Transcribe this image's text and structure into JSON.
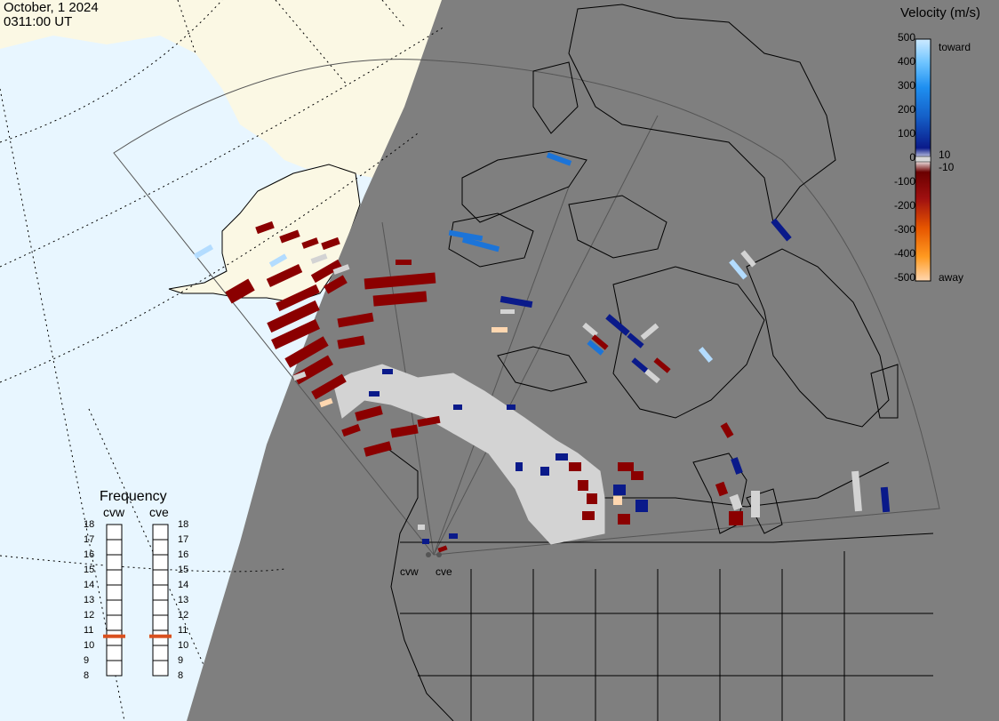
{
  "header": {
    "date": "October, 1 2024",
    "time": "0311:00 UT"
  },
  "velocity_legend": {
    "title": "Velocity (m/s)",
    "left_ticks": [
      "500",
      "400",
      "300",
      "200",
      "100",
      "0",
      "-100",
      "-200",
      "-300",
      "-400",
      "-500"
    ],
    "right_labels": {
      "toward": "toward",
      "ten": "10",
      "neg_ten": "-10",
      "away": "away"
    }
  },
  "frequency_legend": {
    "title": "Frequency",
    "radars": [
      "cvw",
      "cve"
    ],
    "ticks": [
      "18",
      "17",
      "16",
      "15",
      "14",
      "13",
      "12",
      "11",
      "10",
      "9",
      "8"
    ],
    "current_frequency_mhz": [
      10.9,
      10.9
    ],
    "marker_color": "#d9501e"
  },
  "map": {
    "radar_labels": [
      "cvw",
      "cve"
    ],
    "colors": {
      "night": "#7f7f7f",
      "ocean_day": "#e8f6ff",
      "land_day": "#fbf8e4",
      "ground_scatter": "#d3d3d3",
      "away_strong": "#8b0000",
      "toward_strong": "#0a1a8a",
      "toward_mid": "#1c74d8",
      "toward_light": "#b3dcff",
      "away_light": "#ffd7b0"
    }
  }
}
